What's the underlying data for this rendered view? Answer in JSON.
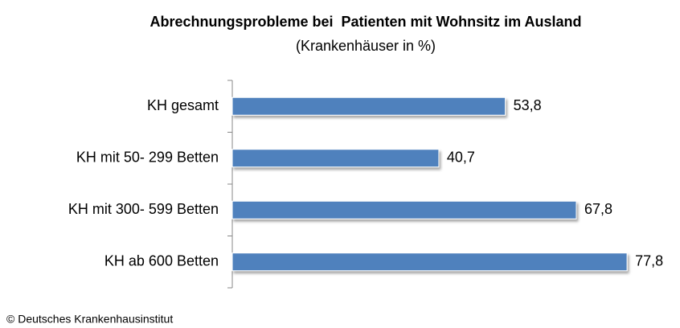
{
  "chart_data": {
    "type": "bar",
    "orientation": "horizontal",
    "title": "Abrechnungsprobleme bei  Patienten mit Wohnsitz im Ausland",
    "subtitle": "(Krankenhäuser in %)",
    "categories": [
      "KH gesamt",
      "KH mit 50- 299 Betten",
      "KH mit 300- 599 Betten",
      "KH ab 600 Betten"
    ],
    "values": [
      53.8,
      40.7,
      67.8,
      77.8
    ],
    "value_labels": [
      "53,8",
      "40,7",
      "67,8",
      "77,8"
    ],
    "color": "#4f81bd",
    "xlim": [
      0,
      80
    ],
    "source": "© Deutsches Krankenhausinstitut"
  }
}
